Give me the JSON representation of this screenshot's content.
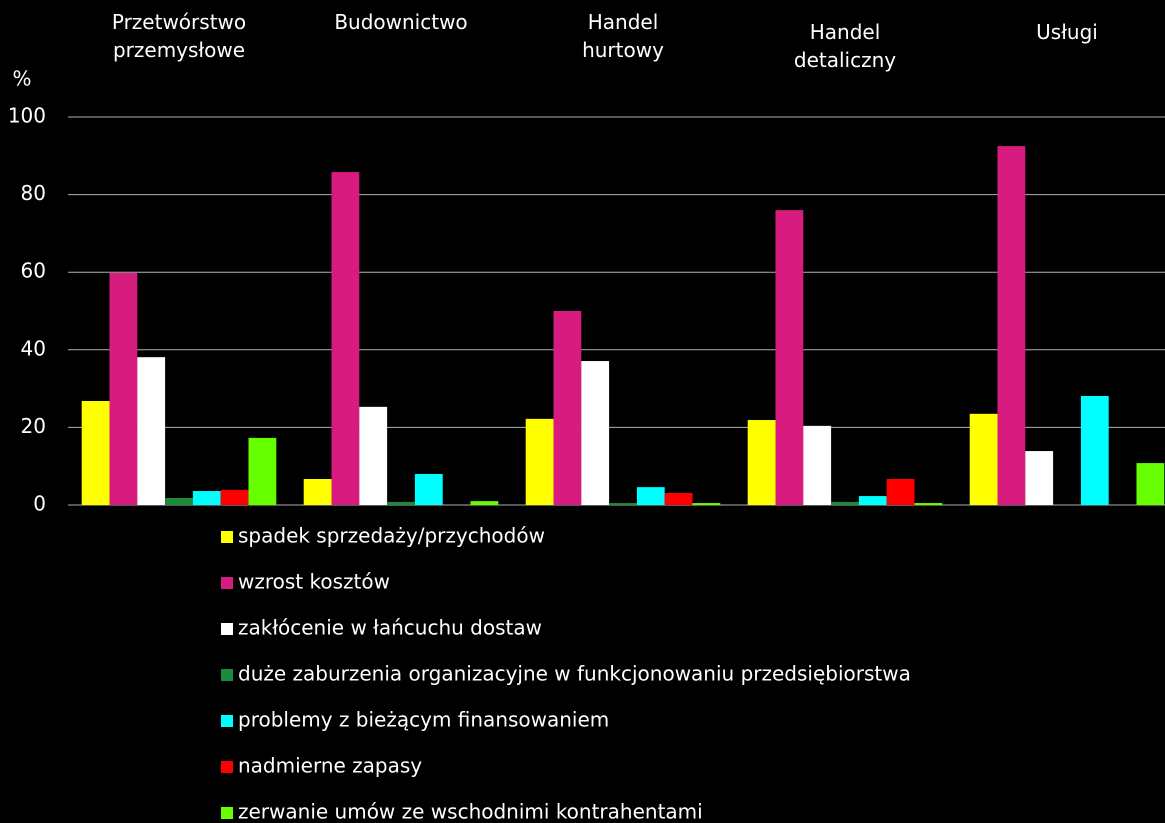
{
  "chart_data": {
    "type": "bar",
    "y_label": "%",
    "categories": [
      "Przetwórstwo przemysłowe",
      "Budownictwo",
      "Handel hurtowy",
      "Handel detaliczny",
      "Usługi"
    ],
    "series": [
      {
        "name": "spadek sprzedaży/przychodów",
        "color": "#ffff00",
        "values": [
          26.8,
          6.7,
          22.2,
          21.9,
          23.5
        ]
      },
      {
        "name": "wzrost kosztów",
        "color": "#d81b7f",
        "values": [
          59.8,
          85.8,
          50,
          76,
          92.5
        ]
      },
      {
        "name": "zakłócenie w łańcuchu dostaw",
        "color": "#ffffff",
        "values": [
          38.1,
          25.3,
          37.1,
          20.4,
          13.9
        ]
      },
      {
        "name": "duże zaburzenia organizacyjne w funkcjonowaniu przedsiębiorstwa",
        "color": "#1a8c3c",
        "values": [
          1.8,
          0.8,
          0.5,
          0.8,
          0
        ]
      },
      {
        "name": "problemy z bieżącym finansowaniem",
        "color": "#00ffff",
        "values": [
          3.6,
          8,
          4.6,
          2.3,
          28.1
        ]
      },
      {
        "name": "nadmierne zapasy",
        "color": "#ff0000",
        "values": [
          3.9,
          0,
          3.1,
          6.7,
          0
        ]
      },
      {
        "name": "zerwanie umów ze wschodnimi kontrahentami",
        "color": "#66ff00",
        "values": [
          17.3,
          1,
          0.5,
          0.5,
          10.8
        ]
      }
    ],
    "ylim": [
      0,
      100
    ],
    "yticks": [
      0,
      20,
      40,
      60,
      80,
      100
    ],
    "grid": true,
    "legend": "bottom"
  }
}
